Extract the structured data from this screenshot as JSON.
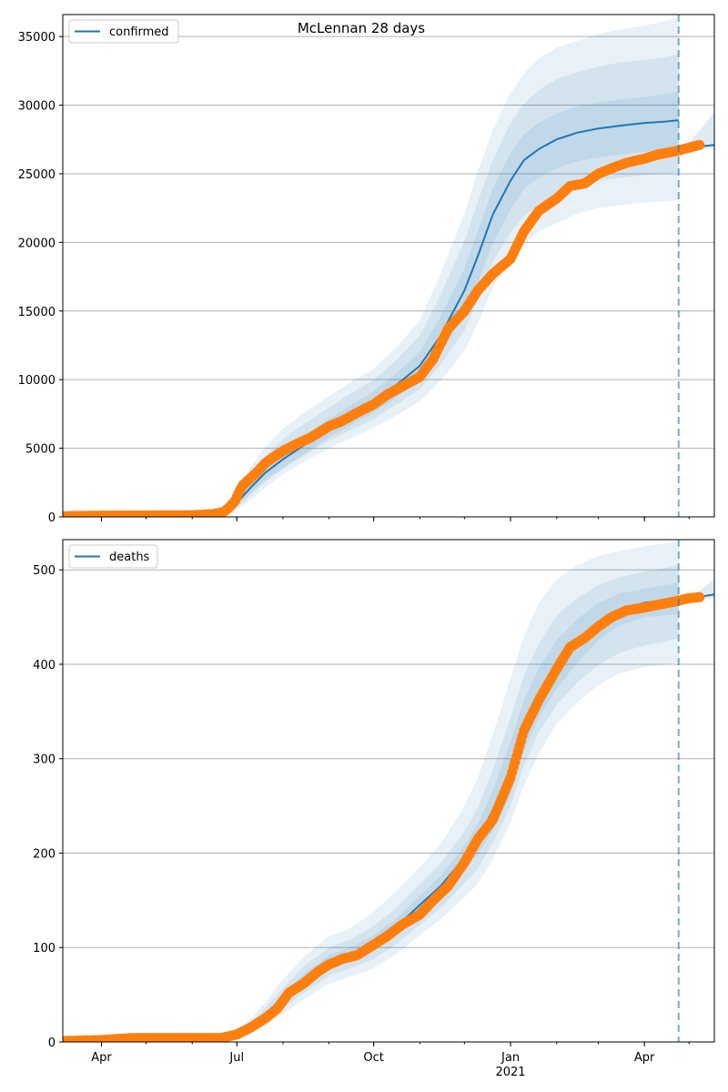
{
  "title": "McLennan 28 days",
  "colors": {
    "model": "#1f77b4",
    "observed": "#ff7f0e",
    "band": "#1f77b4",
    "grid": "#b0b0b0"
  },
  "chart_data": [
    {
      "type": "line",
      "legend": "confirmed",
      "legend_position": "upper-left",
      "grid": "y",
      "xlim": [
        "2020-03-06",
        "2021-05-18"
      ],
      "ylim": [
        0,
        36600
      ],
      "yticks": [
        0,
        5000,
        10000,
        15000,
        20000,
        25000,
        30000,
        35000
      ],
      "xticks": [
        [
          "2020-04-01",
          "Apr"
        ],
        [
          "2020-07-01",
          "Jul"
        ],
        [
          "2020-10-01",
          "Oct"
        ],
        [
          "2021-01-01",
          "Jan"
        ],
        [
          "2021-04-01",
          "Apr"
        ]
      ],
      "xtick_year": {
        "date": "2021-01-01",
        "label": "2021"
      },
      "forecast_start": "2021-04-24",
      "model_x": [
        "2020-03-06",
        "2020-04-01",
        "2020-05-01",
        "2020-06-01",
        "2020-06-20",
        "2020-06-28",
        "2020-07-01",
        "2020-07-05",
        "2020-07-10",
        "2020-07-20",
        "2020-08-01",
        "2020-08-15",
        "2020-09-01",
        "2020-09-15",
        "2020-10-01",
        "2020-10-15",
        "2020-11-01",
        "2020-11-15",
        "2020-12-01",
        "2020-12-10",
        "2020-12-20",
        "2021-01-01",
        "2021-01-10",
        "2021-01-20",
        "2021-02-01",
        "2021-02-15",
        "2021-03-01",
        "2021-03-15",
        "2021-04-01",
        "2021-04-15",
        "2021-04-24"
      ],
      "model": [
        0,
        0,
        0,
        40,
        200,
        700,
        1000,
        1500,
        2100,
        3200,
        4200,
        5200,
        6500,
        7400,
        8400,
        9500,
        11000,
        13200,
        16500,
        19000,
        22000,
        24500,
        26000,
        26800,
        27500,
        28000,
        28300,
        28500,
        28700,
        28800,
        28900
      ],
      "bands": [
        {
          "upper": [
            0,
            0,
            0,
            80,
            400,
            1200,
            1700,
            2500,
            3600,
            5100,
            6400,
            7600,
            8800,
            9800,
            10800,
            12200,
            14300,
            17700,
            22100,
            25200,
            28200,
            30900,
            32300,
            33400,
            34200,
            34700,
            35200,
            35500,
            35800,
            36100,
            36400
          ],
          "lower": [
            0,
            0,
            0,
            10,
            80,
            300,
            500,
            800,
            1200,
            2100,
            3100,
            4000,
            5000,
            5700,
            6500,
            7300,
            8400,
            9900,
            12100,
            14100,
            16700,
            18700,
            19800,
            20800,
            21400,
            22100,
            22500,
            22700,
            22900,
            23000,
            23100
          ]
        },
        {
          "upper": [
            0,
            0,
            0,
            65,
            320,
            1000,
            1450,
            2150,
            3050,
            4450,
            5650,
            6750,
            7950,
            8950,
            10000,
            11300,
            13200,
            16200,
            20100,
            23000,
            26000,
            28700,
            30100,
            31100,
            31900,
            32400,
            32800,
            33100,
            33300,
            33500,
            33700
          ],
          "lower": [
            0,
            0,
            0,
            20,
            110,
            400,
            650,
            1050,
            1550,
            2500,
            3500,
            4450,
            5550,
            6300,
            7150,
            8100,
            9300,
            11100,
            13600,
            15800,
            18600,
            20700,
            21900,
            22800,
            23500,
            24100,
            24500,
            24700,
            24900,
            25000,
            25100
          ]
        },
        {
          "upper": [
            0,
            0,
            0,
            52,
            250,
            830,
            1200,
            1800,
            2500,
            3800,
            4850,
            5900,
            7150,
            8100,
            9150,
            10350,
            12000,
            14600,
            18100,
            20800,
            23900,
            26500,
            27900,
            28700,
            29400,
            29900,
            30200,
            30400,
            30600,
            30800,
            31000
          ],
          "lower": [
            0,
            0,
            0,
            30,
            150,
            560,
            820,
            1250,
            1750,
            2700,
            3600,
            4550,
            5800,
            6650,
            7600,
            8600,
            9950,
            11900,
            14800,
            17100,
            19900,
            22400,
            23900,
            24700,
            25400,
            25900,
            26200,
            26400,
            26600,
            26700,
            26800
          ]
        }
      ],
      "post_x": [
        "2021-04-24",
        "2021-05-01",
        "2021-05-10",
        "2021-05-18"
      ],
      "post_model": [
        26600,
        26800,
        27000,
        27100
      ],
      "post_upper": [
        26700,
        27300,
        28400,
        29500
      ],
      "post_lower": [
        26500,
        26600,
        26750,
        26900
      ],
      "observed_x": [
        "2020-03-06",
        "2020-04-01",
        "2020-05-01",
        "2020-06-01",
        "2020-06-15",
        "2020-06-22",
        "2020-06-26",
        "2020-06-30",
        "2020-07-02",
        "2020-07-05",
        "2020-07-10",
        "2020-07-15",
        "2020-07-20",
        "2020-07-25",
        "2020-08-01",
        "2020-08-10",
        "2020-08-20",
        "2020-09-01",
        "2020-09-10",
        "2020-09-20",
        "2020-10-01",
        "2020-10-10",
        "2020-10-20",
        "2020-11-01",
        "2020-11-10",
        "2020-11-20",
        "2020-12-01",
        "2020-12-10",
        "2020-12-20",
        "2021-01-01",
        "2021-01-10",
        "2021-01-20",
        "2021-02-01",
        "2021-02-10",
        "2021-02-20",
        "2021-03-01",
        "2021-03-10",
        "2021-03-20",
        "2021-04-01",
        "2021-04-10",
        "2021-04-20",
        "2021-05-01",
        "2021-05-08"
      ],
      "observed": [
        50,
        90,
        100,
        120,
        200,
        350,
        700,
        1200,
        1700,
        2300,
        2800,
        3300,
        3900,
        4300,
        4800,
        5300,
        5800,
        6600,
        7000,
        7600,
        8200,
        8900,
        9500,
        10200,
        11500,
        13700,
        15000,
        16500,
        17700,
        18800,
        20800,
        22300,
        23200,
        24100,
        24300,
        25000,
        25400,
        25800,
        26100,
        26400,
        26600,
        26900,
        27100
      ]
    },
    {
      "type": "line",
      "legend": "deaths",
      "legend_position": "upper-left",
      "grid": "y",
      "xlim": [
        "2020-03-06",
        "2021-05-18"
      ],
      "ylim": [
        0,
        532
      ],
      "yticks": [
        0,
        100,
        200,
        300,
        400,
        500
      ],
      "xticks": [
        [
          "2020-04-01",
          "Apr"
        ],
        [
          "2020-07-01",
          "Jul"
        ],
        [
          "2020-10-01",
          "Oct"
        ],
        [
          "2021-01-01",
          "Jan"
        ],
        [
          "2021-04-01",
          "Apr"
        ]
      ],
      "xtick_year": {
        "date": "2021-01-01",
        "label": "2021"
      },
      "forecast_start": "2021-04-24",
      "model_x": [
        "2020-03-06",
        "2020-04-01",
        "2020-05-01",
        "2020-06-01",
        "2020-06-25",
        "2020-07-01",
        "2020-07-10",
        "2020-07-20",
        "2020-08-01",
        "2020-08-15",
        "2020-09-01",
        "2020-09-15",
        "2020-10-01",
        "2020-10-15",
        "2020-11-01",
        "2020-11-15",
        "2020-12-01",
        "2020-12-10",
        "2020-12-20",
        "2021-01-01",
        "2021-01-10",
        "2021-01-20",
        "2021-02-01",
        "2021-02-15",
        "2021-03-01",
        "2021-03-15",
        "2021-04-01",
        "2021-04-15",
        "2021-04-24"
      ],
      "model": [
        1,
        2,
        3,
        4,
        5,
        8,
        15,
        28,
        45,
        65,
        85,
        93,
        105,
        120,
        145,
        165,
        195,
        215,
        245,
        290,
        335,
        370,
        400,
        425,
        445,
        458,
        465,
        468,
        470
      ],
      "bands": [
        {
          "upper": [
            2,
            3,
            4,
            5,
            8,
            13,
            24,
            42,
            66,
            90,
            112,
            120,
            138,
            158,
            185,
            210,
            250,
            280,
            325,
            385,
            430,
            465,
            490,
            505,
            515,
            520,
            525,
            528,
            530
          ],
          "lower": [
            0,
            1,
            2,
            3,
            3,
            5,
            9,
            17,
            30,
            45,
            62,
            69,
            78,
            92,
            113,
            130,
            153,
            168,
            193,
            232,
            272,
            305,
            337,
            360,
            378,
            390,
            397,
            400,
            402
          ]
        },
        {
          "upper": [
            1,
            2,
            3,
            4,
            6,
            10,
            20,
            36,
            57,
            80,
            100,
            108,
            123,
            140,
            167,
            189,
            223,
            248,
            288,
            343,
            388,
            422,
            452,
            470,
            484,
            492,
            498,
            502,
            505
          ],
          "lower": [
            1,
            1,
            2,
            3,
            4,
            6,
            11,
            21,
            35,
            52,
            70,
            78,
            88,
            102,
            124,
            142,
            168,
            184,
            210,
            250,
            293,
            328,
            357,
            381,
            399,
            412,
            420,
            424,
            428
          ]
        },
        {
          "upper": [
            1,
            2,
            3,
            4,
            5,
            9,
            17,
            31,
            50,
            72,
            92,
            100,
            113,
            129,
            155,
            176,
            208,
            231,
            266,
            318,
            362,
            396,
            426,
            448,
            465,
            475,
            480,
            484,
            487
          ],
          "lower": [
            1,
            2,
            3,
            4,
            5,
            7,
            13,
            25,
            40,
            58,
            78,
            86,
            97,
            111,
            135,
            154,
            182,
            199,
            224,
            262,
            308,
            344,
            374,
            402,
            425,
            441,
            450,
            452,
            453
          ]
        }
      ],
      "post_x": [
        "2021-04-24",
        "2021-05-01",
        "2021-05-10",
        "2021-05-18"
      ],
      "post_model": [
        466,
        470,
        472,
        474
      ],
      "post_upper": [
        467,
        472,
        480,
        490
      ],
      "post_lower": [
        465,
        468,
        469,
        470
      ],
      "observed_x": [
        "2020-03-06",
        "2020-04-01",
        "2020-04-20",
        "2020-05-01",
        "2020-06-01",
        "2020-06-20",
        "2020-07-01",
        "2020-07-10",
        "2020-07-20",
        "2020-07-28",
        "2020-08-05",
        "2020-08-15",
        "2020-08-25",
        "2020-09-01",
        "2020-09-10",
        "2020-09-20",
        "2020-10-01",
        "2020-10-10",
        "2020-10-20",
        "2020-11-01",
        "2020-11-10",
        "2020-11-20",
        "2020-12-01",
        "2020-12-10",
        "2020-12-20",
        "2021-01-01",
        "2021-01-10",
        "2021-01-20",
        "2021-02-01",
        "2021-02-10",
        "2021-02-20",
        "2021-03-01",
        "2021-03-10",
        "2021-03-20",
        "2021-04-01",
        "2021-04-10",
        "2021-04-20",
        "2021-05-01",
        "2021-05-08"
      ],
      "observed": [
        1,
        2,
        4,
        4,
        4,
        4,
        8,
        15,
        25,
        35,
        52,
        62,
        75,
        82,
        88,
        92,
        103,
        112,
        124,
        135,
        150,
        165,
        190,
        215,
        235,
        280,
        330,
        362,
        395,
        418,
        428,
        440,
        450,
        457,
        460,
        463,
        466,
        470,
        471
      ]
    }
  ]
}
